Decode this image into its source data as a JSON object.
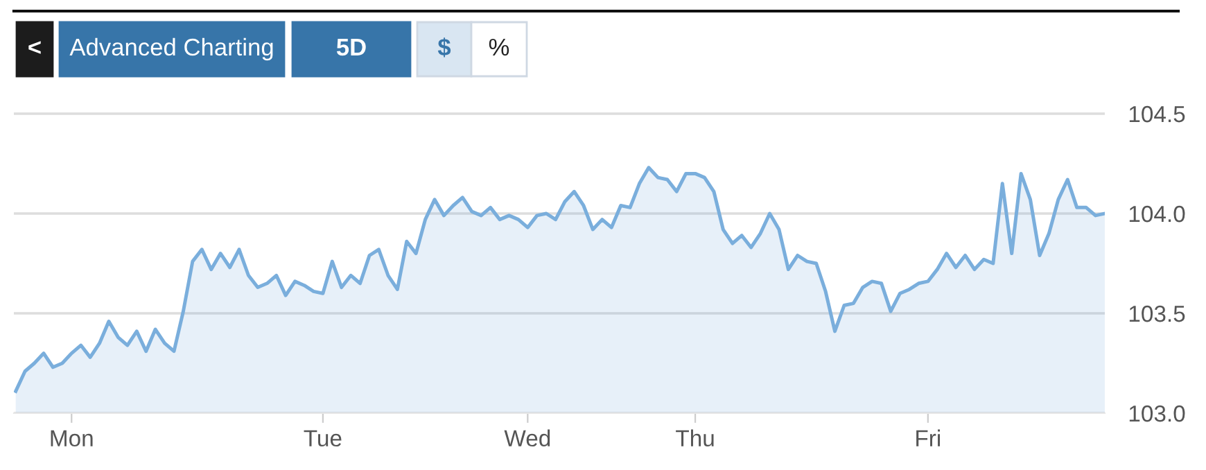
{
  "chart_data": {
    "type": "area",
    "annotations": [
      "<",
      "Advanced Charting",
      "5D",
      "$",
      "%"
    ],
    "categories": [
      null,
      null,
      null,
      null,
      null,
      null,
      "Mon",
      null,
      null,
      null,
      null,
      null,
      null,
      null,
      null,
      null,
      null,
      null,
      null,
      null,
      null,
      null,
      null,
      null,
      null,
      null,
      null,
      null,
      null,
      null,
      null,
      null,
      null,
      "Tue",
      null,
      null,
      null,
      null,
      null,
      null,
      null,
      null,
      null,
      null,
      null,
      null,
      null,
      null,
      null,
      null,
      null,
      null,
      null,
      null,
      null,
      "Wed",
      null,
      null,
      null,
      null,
      null,
      null,
      null,
      null,
      null,
      null,
      null,
      null,
      null,
      null,
      null,
      null,
      null,
      "Thu",
      null,
      null,
      null,
      null,
      null,
      null,
      null,
      null,
      null,
      null,
      null,
      null,
      null,
      null,
      null,
      null,
      null,
      null,
      null,
      null,
      null,
      null,
      null,
      null,
      "Fri",
      null,
      null,
      null,
      null,
      null,
      null,
      null,
      null,
      null,
      null,
      null,
      null,
      null,
      null,
      null,
      null,
      null,
      null,
      null
    ],
    "series": [
      {
        "color": "#7aaedc",
        "values": [
          103.11,
          103.21,
          103.25,
          103.3,
          103.23,
          103.25,
          103.3,
          103.34,
          103.28,
          103.35,
          103.46,
          103.38,
          103.34,
          103.41,
          103.31,
          103.42,
          103.35,
          103.31,
          103.51,
          103.76,
          103.82,
          103.72,
          103.8,
          103.73,
          103.82,
          103.69,
          103.63,
          103.65,
          103.69,
          103.59,
          103.66,
          103.64,
          103.61,
          103.6,
          103.76,
          103.63,
          103.69,
          103.65,
          103.79,
          103.82,
          103.69,
          103.62,
          103.86,
          103.8,
          103.97,
          104.07,
          103.99,
          104.04,
          104.08,
          104.01,
          103.99,
          104.03,
          103.97,
          103.99,
          103.97,
          103.93,
          103.99,
          104.0,
          103.97,
          104.06,
          104.11,
          104.04,
          103.92,
          103.97,
          103.93,
          104.04,
          104.03,
          104.15,
          104.23,
          104.18,
          104.17,
          104.11,
          104.2,
          104.2,
          104.18,
          104.11,
          103.92,
          103.85,
          103.89,
          103.83,
          103.9,
          104.0,
          103.92,
          103.72,
          103.79,
          103.76,
          103.75,
          103.61,
          103.41,
          103.54,
          103.55,
          103.63,
          103.66,
          103.65,
          103.51,
          103.6,
          103.62,
          103.65,
          103.66,
          103.72,
          103.8,
          103.73,
          103.79,
          103.72,
          103.77,
          103.75,
          104.15,
          103.8,
          104.2,
          104.07,
          103.79,
          103.9,
          104.07,
          104.17,
          104.03,
          104.03,
          103.99,
          104.0
        ]
      }
    ],
    "ylim": [
      103.0,
      105.0
    ],
    "yticks": [
      {
        "value": 103,
        "label": "103.0"
      },
      {
        "value": 103.5,
        "label": "103.5"
      },
      {
        "value": 104,
        "label": "104.0"
      },
      {
        "value": 104.5,
        "label": "104.5"
      }
    ],
    "grid": "y",
    "legend": false
  }
}
